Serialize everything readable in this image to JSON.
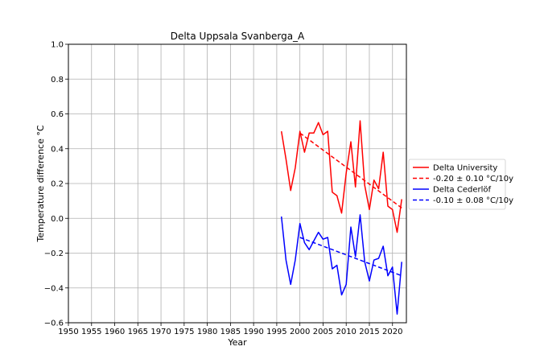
{
  "chart_data": {
    "type": "line",
    "title": "Delta Uppsala Svanberga_A",
    "xlabel": "Year",
    "ylabel": "Temperature difference °C",
    "xlim": [
      1950,
      2023
    ],
    "ylim": [
      -0.6,
      1.0
    ],
    "xticks": [
      "1950",
      "1955",
      "1960",
      "1965",
      "1970",
      "1975",
      "1980",
      "1985",
      "1990",
      "1995",
      "2000",
      "2005",
      "2010",
      "2015",
      "2020"
    ],
    "yticks": [
      "−0.6",
      "−0.4",
      "−0.2",
      "0.0",
      "0.2",
      "0.4",
      "0.6",
      "0.8",
      "1.0"
    ],
    "grid": true,
    "legend_position": "right, outside plot",
    "series": [
      {
        "name": "Delta University",
        "color": "#ff0000",
        "style": "solid",
        "x": [
          1996,
          1997,
          1998,
          1999,
          2000,
          2001,
          2002,
          2003,
          2004,
          2005,
          2006,
          2007,
          2008,
          2009,
          2010,
          2011,
          2012,
          2013,
          2014,
          2015,
          2016,
          2017,
          2018,
          2019,
          2020,
          2021,
          2022
        ],
        "y": [
          0.5,
          0.34,
          0.16,
          0.29,
          0.5,
          0.38,
          0.49,
          0.49,
          0.55,
          0.48,
          0.5,
          0.15,
          0.13,
          0.03,
          0.26,
          0.44,
          0.18,
          0.56,
          0.19,
          0.05,
          0.22,
          0.17,
          0.38,
          0.07,
          0.05,
          -0.08,
          0.11
        ]
      },
      {
        "name": "-0.20 ± 0.10 °C/10y",
        "color": "#ff0000",
        "style": "dashed",
        "x": [
          2000,
          2022
        ],
        "y": [
          0.49,
          0.06
        ]
      },
      {
        "name": "Delta Cederlöf",
        "color": "#0000ff",
        "style": "solid",
        "x": [
          1996,
          1997,
          1998,
          1999,
          2000,
          2001,
          2002,
          2003,
          2004,
          2005,
          2006,
          2007,
          2008,
          2009,
          2010,
          2011,
          2012,
          2013,
          2014,
          2015,
          2016,
          2017,
          2018,
          2019,
          2020,
          2021,
          2022
        ],
        "y": [
          0.01,
          -0.24,
          -0.38,
          -0.24,
          -0.03,
          -0.14,
          -0.18,
          -0.13,
          -0.08,
          -0.12,
          -0.11,
          -0.29,
          -0.27,
          -0.44,
          -0.38,
          -0.05,
          -0.22,
          0.02,
          -0.25,
          -0.36,
          -0.24,
          -0.23,
          -0.16,
          -0.33,
          -0.28,
          -0.55,
          -0.25
        ]
      },
      {
        "name": "-0.10 ± 0.08 °C/10y",
        "color": "#0000ff",
        "style": "dashed",
        "x": [
          2000,
          2022
        ],
        "y": [
          -0.11,
          -0.33
        ]
      }
    ]
  }
}
